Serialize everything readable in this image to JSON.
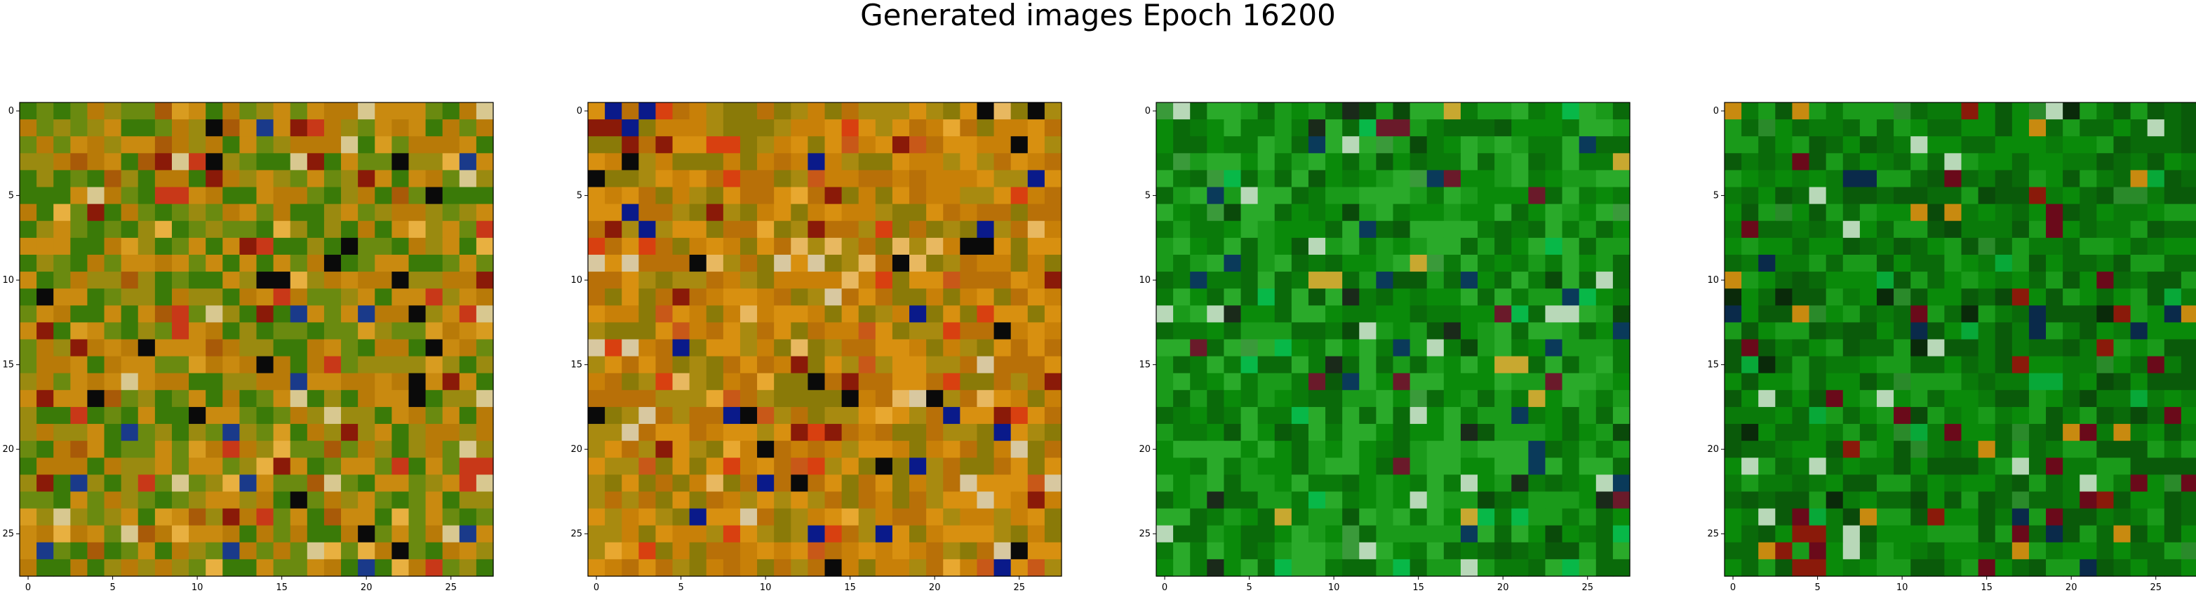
{
  "figure": {
    "title": "Generated images Epoch 16200"
  },
  "chart_data": [
    {
      "type": "heatmap",
      "title": "",
      "xlabel": "",
      "ylabel": "",
      "grid": false,
      "size": [
        28,
        28
      ],
      "xlim": [
        -0.5,
        27.5
      ],
      "ylim": [
        27.5,
        -0.5
      ],
      "xticks": [
        0,
        5,
        10,
        15,
        20,
        25
      ],
      "yticks": [
        0,
        5,
        10,
        15,
        20,
        25
      ],
      "palette": "orange-olive",
      "colors": [
        "#b87a08",
        "#c98a10",
        "#9a8a10",
        "#6a8a10",
        "#3a7a08",
        "#d89c20",
        "#a85a08",
        "#8a1a08",
        "#e8b040",
        "#d8c890",
        "#1a3a8a",
        "#0a0a0a",
        "#c83818"
      ]
    },
    {
      "type": "heatmap",
      "title": "",
      "xlabel": "",
      "ylabel": "",
      "grid": false,
      "size": [
        28,
        28
      ],
      "xlim": [
        -0.5,
        27.5
      ],
      "ylim": [
        27.5,
        -0.5
      ],
      "xticks": [
        0,
        5,
        10,
        15,
        20,
        25
      ],
      "yticks": [
        0,
        5,
        10,
        15,
        20,
        25
      ],
      "palette": "orange-gold",
      "colors": [
        "#c88008",
        "#d89010",
        "#b87008",
        "#a88a10",
        "#8a7a08",
        "#e8a830",
        "#c85818",
        "#8a1a08",
        "#e8b860",
        "#d8c8a0",
        "#0a1a8a",
        "#0a0a0a",
        "#d84010"
      ]
    },
    {
      "type": "heatmap",
      "title": "",
      "xlabel": "",
      "ylabel": "",
      "grid": false,
      "size": [
        28,
        28
      ],
      "xlim": [
        -0.5,
        27.5
      ],
      "ylim": [
        27.5,
        -0.5
      ],
      "xticks": [
        0,
        5,
        10,
        15,
        20,
        25
      ],
      "yticks": [
        0,
        5,
        10,
        15,
        20,
        25
      ],
      "palette": "green",
      "colors": [
        "#0a7a0a",
        "#0a8a0a",
        "#0a6a0a",
        "#1a9a1a",
        "#2aaa2a",
        "#0a5a0a",
        "#0a4a0a",
        "#3a9a3a",
        "#08b848",
        "#1a2a1a",
        "#0a3a5a",
        "#6a1a2a",
        "#c8a830",
        "#b8d8b8"
      ]
    },
    {
      "type": "heatmap",
      "title": "",
      "xlabel": "",
      "ylabel": "",
      "grid": false,
      "size": [
        28,
        28
      ],
      "xlim": [
        -0.5,
        27.5
      ],
      "ylim": [
        27.5,
        -0.5
      ],
      "xticks": [
        0,
        5,
        10,
        15,
        20,
        25
      ],
      "yticks": [
        0,
        5,
        10,
        15,
        20,
        25
      ],
      "palette": "green-dark",
      "colors": [
        "#0a7a0a",
        "#0a8a0a",
        "#0a6a0a",
        "#1a9a1a",
        "#0a5a0a",
        "#0a4a0a",
        "#2a8a2a",
        "#08a838",
        "#0a2a0a",
        "#0a2a4a",
        "#6a0a1a",
        "#c88a10",
        "#b8d8b8",
        "#8a1a0a"
      ]
    }
  ]
}
